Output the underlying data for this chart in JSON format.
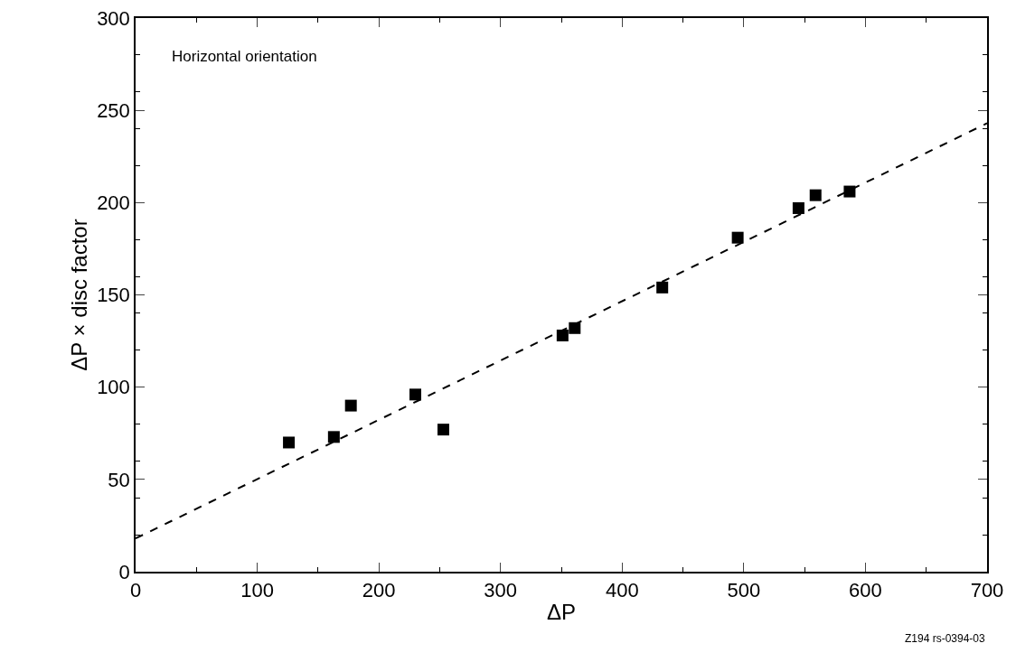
{
  "chart_data": {
    "type": "scatter",
    "xlabel": "ΔP",
    "ylabel": "ΔP × disc factor",
    "annotations": [
      "Horizontal orientation",
      "Z194 rs-0394-03"
    ],
    "xlim": [
      0,
      700
    ],
    "xticks": [
      0,
      100,
      200,
      300,
      400,
      500,
      600,
      700
    ],
    "ylim": [
      0,
      300
    ],
    "yticks": [
      0,
      50,
      100,
      150,
      200,
      250,
      300
    ],
    "grid": false,
    "marker": "square",
    "series": [
      {
        "color": "#000000",
        "x": [
          126,
          163,
          177,
          230,
          253,
          351,
          361,
          433,
          495,
          545,
          559,
          587
        ],
        "values": [
          70,
          73,
          90,
          96,
          77,
          128,
          132,
          154,
          181,
          197,
          204,
          206
        ]
      },
      {
        "type": "line",
        "line_style": "dashed",
        "marker": "none",
        "color": "#000000",
        "x": [
          0,
          700
        ],
        "values": [
          18,
          243
        ]
      }
    ]
  }
}
